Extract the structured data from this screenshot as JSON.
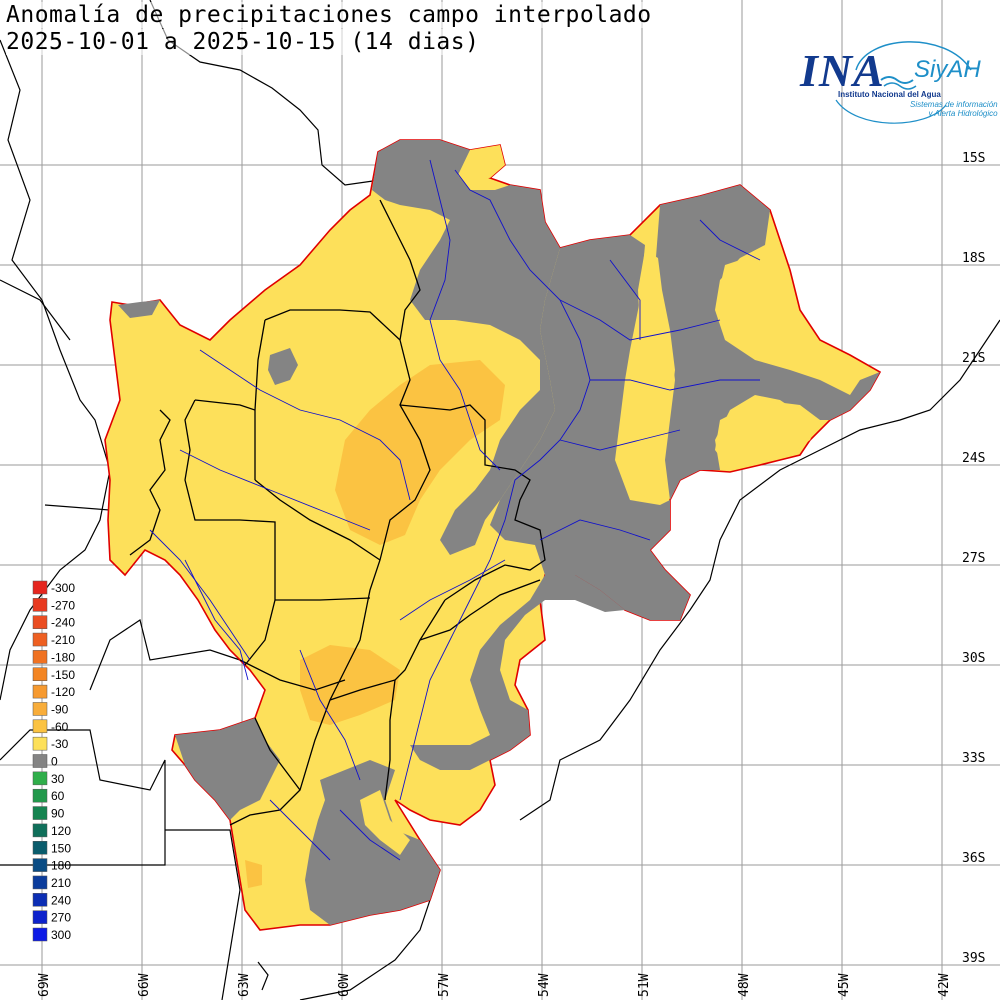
{
  "title": {
    "line1": "Anomalía de precipitaciones campo interpolado",
    "line2": "2025-10-01 a 2025-10-15 (14 dias)"
  },
  "logo": {
    "main": "INA",
    "secondary": "SiyAH",
    "subtitle1": "Instituto Nacional del Agua",
    "subtitle2a": "Sistemas de información",
    "subtitle2b": "y Alerta Hidrológico"
  },
  "lat_labels": [
    "15S",
    "18S",
    "21S",
    "24S",
    "27S",
    "30S",
    "33S",
    "36S",
    "39S"
  ],
  "lon_labels": [
    "69W",
    "66W",
    "63W",
    "60W",
    "57W",
    "54W",
    "51W",
    "48W",
    "45W",
    "42W"
  ],
  "legend": [
    {
      "label": "-300",
      "color": "#e5261f"
    },
    {
      "label": "-270",
      "color": "#e83a20"
    },
    {
      "label": "-240",
      "color": "#eb4d22"
    },
    {
      "label": "-210",
      "color": "#ee6022"
    },
    {
      "label": "-180",
      "color": "#f07222"
    },
    {
      "label": "-150",
      "color": "#f38523"
    },
    {
      "label": "-120",
      "color": "#f69a30"
    },
    {
      "label": "-90",
      "color": "#f8ad3a"
    },
    {
      "label": "-60",
      "color": "#fbc342"
    },
    {
      "label": "-30",
      "color": "#fde05a"
    },
    {
      "label": "0",
      "color": "#848484"
    },
    {
      "label": "30",
      "color": "#2fae4a"
    },
    {
      "label": "60",
      "color": "#22994c"
    },
    {
      "label": "90",
      "color": "#158450"
    },
    {
      "label": "120",
      "color": "#0f6f5a"
    },
    {
      "label": "150",
      "color": "#0a5c6c"
    },
    {
      "label": "180",
      "color": "#0a4c84"
    },
    {
      "label": "210",
      "color": "#0b3c9c"
    },
    {
      "label": "240",
      "color": "#0c2eb4"
    },
    {
      "label": "270",
      "color": "#0d22cc"
    },
    {
      "label": "300",
      "color": "#0d1ae6"
    }
  ],
  "colors": {
    "boundary": "#e00000",
    "rivers": "#1010cc",
    "borders": "#000000",
    "grid": "#9a9a9a"
  }
}
